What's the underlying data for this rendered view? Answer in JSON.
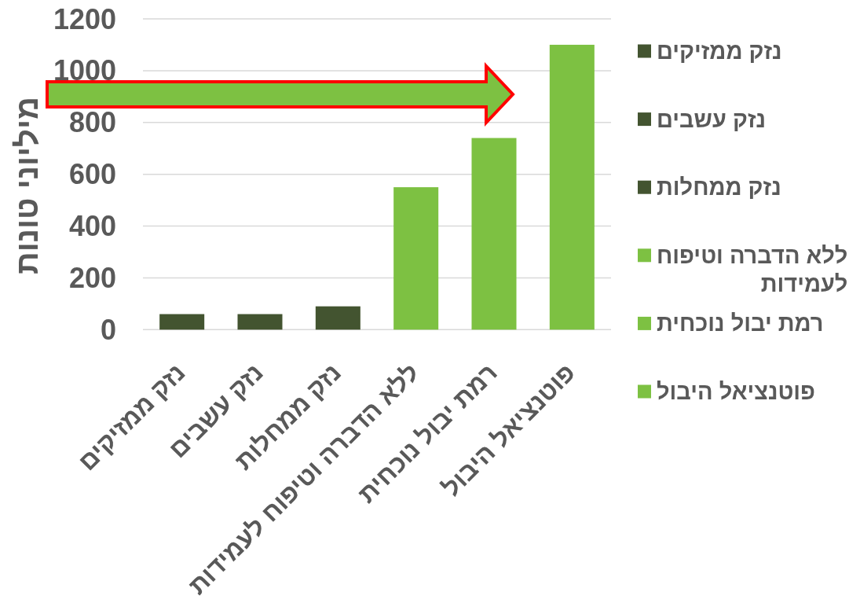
{
  "chart_data": {
    "type": "bar",
    "ylabel": "מיליוני טונות",
    "categories": [
      "נזק ממזיקים",
      "נזק עשבים",
      "נזק ממחלות",
      "ללא הדברה וטיפוח לעמידות",
      "רמת יבול נוכחית",
      "פוטנציאל היבול"
    ],
    "series": [
      {
        "name": "נזק ממזיקים",
        "color": "#435430",
        "values": [
          60,
          null,
          null,
          null,
          null,
          null
        ]
      },
      {
        "name": "נזק עשבים",
        "color": "#435430",
        "values": [
          null,
          60,
          null,
          null,
          null,
          null
        ]
      },
      {
        "name": "נזק ממחלות",
        "color": "#435430",
        "values": [
          null,
          null,
          90,
          null,
          null,
          null
        ]
      },
      {
        "name": "ללא הדברה וטיפוח לעמידות",
        "color": "#7dc142",
        "values": [
          null,
          null,
          null,
          550,
          null,
          null
        ]
      },
      {
        "name": "רמת יבול נוכחית",
        "color": "#7dc142",
        "values": [
          null,
          null,
          null,
          null,
          740,
          null
        ]
      },
      {
        "name": "פוטנציאל היבול",
        "color": "#7dc142",
        "values": [
          null,
          null,
          null,
          null,
          null,
          1100
        ]
      }
    ],
    "stacked": true,
    "ylim": [
      0,
      1200
    ],
    "yticks": [
      0,
      200,
      400,
      600,
      800,
      1000,
      1200
    ],
    "grid": "y",
    "legend": "right"
  }
}
